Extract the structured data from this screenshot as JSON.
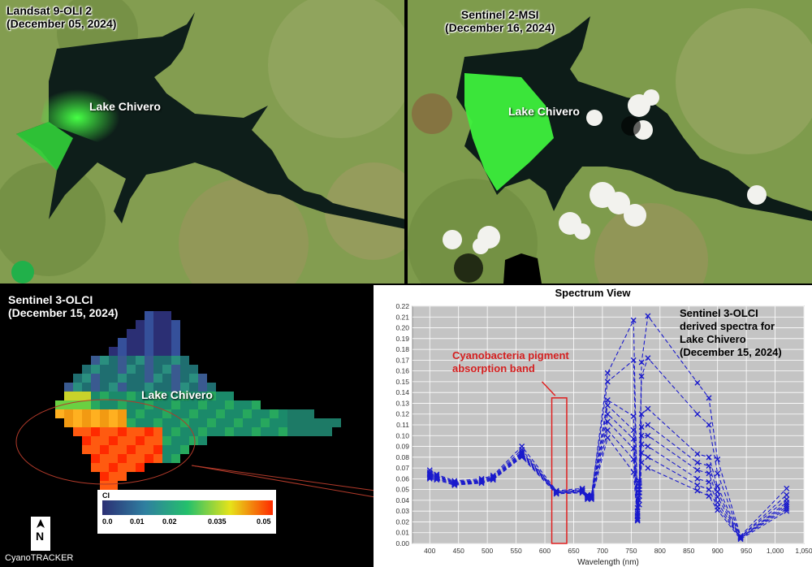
{
  "panels": {
    "landsat": {
      "title": "Landsat 9-OLI 2",
      "date": "(December 05, 2024)",
      "lake_label": "Lake Chivero"
    },
    "sentinel2": {
      "title": "Sentinel 2-MSI",
      "date": "(December 16, 2024)",
      "lake_label": "Lake Chivero"
    },
    "olci": {
      "title": "Sentinel 3-OLCI",
      "date": "(December 15, 2024)",
      "lake_label": "Lake Chivero",
      "colorbar": {
        "label": "CI",
        "ticks": [
          "0.0",
          "0.01",
          "0.02",
          "0.035",
          "0.05"
        ],
        "colors": [
          "#2b2f74",
          "#2f7fa0",
          "#24c06c",
          "#e6e31a",
          "#ff2a00"
        ]
      },
      "north_arrow": "N",
      "watermark": "CyanoTRACKER"
    }
  },
  "spectrum_view": {
    "title": "Spectrum View",
    "annotation_lines": [
      "Sentinel 3-OLCI",
      "derived spectra for",
      "Lake Chivero",
      "(December 15, 2024)"
    ],
    "band_label_lines": [
      "Cyanobacteria pigment",
      "absorption band"
    ]
  },
  "chart_data": {
    "type": "line",
    "title": "Spectrum View",
    "xlabel": "Wavelength (nm)",
    "ylabel": "",
    "xlim": [
      370,
      1050
    ],
    "ylim": [
      0,
      0.22
    ],
    "x_ticks": [
      "400",
      "450",
      "500",
      "550",
      "600",
      "650",
      "700",
      "750",
      "800",
      "850",
      "900",
      "950",
      "1,000",
      "1,050"
    ],
    "y_ticks": [
      "0.00",
      "0.01",
      "0.02",
      "0.03",
      "0.04",
      "0.05",
      "0.06",
      "0.07",
      "0.08",
      "0.09",
      "0.10",
      "0.11",
      "0.12",
      "0.13",
      "0.14",
      "0.15",
      "0.16",
      "0.17",
      "0.18",
      "0.19",
      "0.20",
      "0.21",
      "0.22"
    ],
    "grid": true,
    "marker": "x",
    "line_style": "dashed",
    "series_color": "#1a1acc",
    "highlight_band": {
      "x": [
        612,
        638
      ],
      "y": [
        0,
        0.135
      ],
      "color": "#e02020"
    },
    "x": [
      400,
      412,
      443,
      490,
      510,
      560,
      620,
      665,
      674,
      681,
      709,
      754,
      761,
      764,
      768,
      779,
      865,
      885,
      900,
      940,
      1020
    ],
    "series": [
      {
        "values": [
          0.068,
          0.064,
          0.058,
          0.06,
          0.063,
          0.09,
          0.049,
          0.051,
          0.045,
          0.045,
          0.158,
          0.207,
          0.033,
          0.058,
          0.168,
          0.211,
          0.149,
          0.135,
          0.078,
          0.007,
          0.051
        ]
      },
      {
        "values": [
          0.066,
          0.063,
          0.057,
          0.059,
          0.062,
          0.087,
          0.048,
          0.05,
          0.044,
          0.044,
          0.15,
          0.17,
          0.03,
          0.056,
          0.155,
          0.172,
          0.12,
          0.11,
          0.065,
          0.006,
          0.045
        ]
      },
      {
        "values": [
          0.065,
          0.062,
          0.057,
          0.058,
          0.061,
          0.085,
          0.048,
          0.049,
          0.044,
          0.044,
          0.133,
          0.118,
          0.028,
          0.053,
          0.12,
          0.125,
          0.083,
          0.08,
          0.053,
          0.006,
          0.041
        ]
      },
      {
        "values": [
          0.064,
          0.062,
          0.056,
          0.058,
          0.061,
          0.084,
          0.048,
          0.049,
          0.043,
          0.043,
          0.128,
          0.105,
          0.026,
          0.05,
          0.108,
          0.11,
          0.075,
          0.072,
          0.048,
          0.005,
          0.038
        ]
      },
      {
        "values": [
          0.063,
          0.061,
          0.056,
          0.057,
          0.06,
          0.083,
          0.047,
          0.048,
          0.043,
          0.043,
          0.12,
          0.097,
          0.025,
          0.047,
          0.1,
          0.1,
          0.068,
          0.065,
          0.043,
          0.005,
          0.036
        ]
      },
      {
        "values": [
          0.062,
          0.06,
          0.055,
          0.057,
          0.06,
          0.082,
          0.047,
          0.048,
          0.042,
          0.042,
          0.113,
          0.088,
          0.023,
          0.044,
          0.092,
          0.09,
          0.06,
          0.057,
          0.038,
          0.005,
          0.034
        ]
      },
      {
        "values": [
          0.061,
          0.06,
          0.055,
          0.056,
          0.059,
          0.081,
          0.047,
          0.047,
          0.042,
          0.042,
          0.105,
          0.078,
          0.022,
          0.04,
          0.084,
          0.08,
          0.054,
          0.05,
          0.034,
          0.005,
          0.032
        ]
      },
      {
        "values": [
          0.06,
          0.059,
          0.054,
          0.056,
          0.059,
          0.08,
          0.046,
          0.047,
          0.041,
          0.041,
          0.098,
          0.066,
          0.021,
          0.036,
          0.075,
          0.07,
          0.049,
          0.044,
          0.031,
          0.004,
          0.03
        ]
      }
    ]
  }
}
